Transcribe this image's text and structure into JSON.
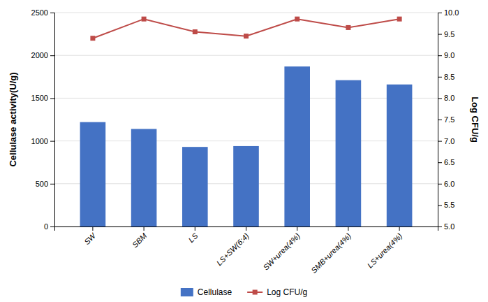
{
  "chart_data": {
    "type": "bar",
    "categories": [
      "SW",
      "SBM",
      "LS",
      "LS+SW(6:4)",
      "SW+urea(4%)",
      "SMB+urea(4%)",
      "LS+urea(4%)"
    ],
    "series": [
      {
        "name": "Cellulase",
        "type": "bar",
        "color": "#4472C4",
        "values": [
          1220,
          1140,
          930,
          940,
          1870,
          1710,
          1660
        ]
      },
      {
        "name": "Log CFU/g",
        "type": "line",
        "color": "#BE4B48",
        "marker": "square",
        "axis": "y2",
        "values": [
          9.4,
          9.85,
          9.55,
          9.45,
          9.85,
          9.65,
          9.85
        ]
      }
    ],
    "ylabel": "Cellulase activity(U/g)",
    "y2label": "Log CFU/g",
    "ylim": [
      0,
      2500
    ],
    "yticks": [
      0,
      500,
      1000,
      1500,
      2000,
      2500
    ],
    "y2lim": [
      5,
      10
    ],
    "y2ticks": [
      {
        "value": 5,
        "label": "5.0"
      },
      5.5,
      {
        "value": 6,
        "label": "6.0"
      },
      6.5,
      {
        "value": 7,
        "label": "7.0"
      },
      7.5,
      {
        "value": 8,
        "label": "8.0"
      },
      8.5,
      {
        "value": 9,
        "label": "9.0"
      },
      9.5,
      {
        "value": 10,
        "label": "10.0"
      }
    ],
    "grid": true,
    "legend": "bottom"
  }
}
